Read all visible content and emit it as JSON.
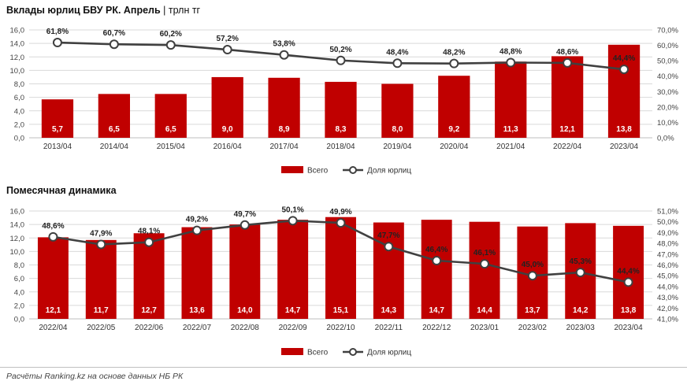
{
  "header": {
    "title": "Вклады юрлиц БВУ РК. Апрель",
    "separator": "|",
    "unit": "трлн тг"
  },
  "footnote": "Расчёты Ranking.kz на основе данных НБ РК",
  "colors": {
    "bar": "#C00000",
    "line": "#404040",
    "grid": "#d9d9d9"
  },
  "chart_data": [
    {
      "type": "bar",
      "title": "",
      "categories": [
        "2013/04",
        "2014/04",
        "2015/04",
        "2016/04",
        "2017/04",
        "2018/04",
        "2019/04",
        "2020/04",
        "2021/04",
        "2022/04",
        "2023/04"
      ],
      "series": [
        {
          "name": "Всего",
          "type": "bar",
          "axis": "left",
          "values": [
            5.7,
            6.5,
            6.5,
            9.0,
            8.9,
            8.3,
            8.0,
            9.2,
            11.3,
            12.1,
            13.8
          ],
          "labels": [
            "5,7",
            "6,5",
            "6,5",
            "9,0",
            "8,9",
            "8,3",
            "8,0",
            "9,2",
            "11,3",
            "12,1",
            "13,8"
          ]
        },
        {
          "name": "Доля юрлиц",
          "type": "line",
          "axis": "right",
          "values": [
            61.8,
            60.7,
            60.2,
            57.2,
            53.8,
            50.2,
            48.4,
            48.2,
            48.8,
            48.6,
            44.4
          ],
          "labels": [
            "61,8%",
            "60,7%",
            "60,2%",
            "57,2%",
            "53,8%",
            "50,2%",
            "48,4%",
            "48,2%",
            "48,8%",
            "48,6%",
            "44,4%"
          ]
        }
      ],
      "ylim": [
        0,
        16
      ],
      "y2lim": [
        0,
        70
      ],
      "yticks": [
        "0,0",
        "2,0",
        "4,0",
        "6,0",
        "8,0",
        "10,0",
        "12,0",
        "14,0",
        "16,0"
      ],
      "y2ticks": [
        "0,0%",
        "10,0%",
        "20,0%",
        "30,0%",
        "40,0%",
        "50,0%",
        "60,0%",
        "70,0%"
      ],
      "grid": true,
      "legend": "bottom-center"
    },
    {
      "type": "bar",
      "title": "Помесячная динамика",
      "categories": [
        "2022/04",
        "2022/05",
        "2022/06",
        "2022/07",
        "2022/08",
        "2022/09",
        "2022/10",
        "2022/11",
        "2022/12",
        "2023/01",
        "2023/02",
        "2023/03",
        "2023/04"
      ],
      "series": [
        {
          "name": "Всего",
          "type": "bar",
          "axis": "left",
          "values": [
            12.1,
            11.7,
            12.7,
            13.6,
            14.0,
            14.7,
            15.1,
            14.3,
            14.7,
            14.4,
            13.7,
            14.2,
            13.8
          ],
          "labels": [
            "12,1",
            "11,7",
            "12,7",
            "13,6",
            "14,0",
            "14,7",
            "15,1",
            "14,3",
            "14,7",
            "14,4",
            "13,7",
            "14,2",
            "13,8"
          ]
        },
        {
          "name": "Доля юрлиц",
          "type": "line",
          "axis": "right",
          "values": [
            48.6,
            47.9,
            48.1,
            49.2,
            49.7,
            50.1,
            49.9,
            47.7,
            46.4,
            46.1,
            45.0,
            45.3,
            44.4
          ],
          "labels": [
            "48,6%",
            "47,9%",
            "48,1%",
            "49,2%",
            "49,7%",
            "50,1%",
            "49,9%",
            "47,7%",
            "46,4%",
            "46,1%",
            "45,0%",
            "45,3%",
            "44,4%"
          ]
        }
      ],
      "ylim": [
        0,
        16
      ],
      "y2lim": [
        41,
        51
      ],
      "yticks": [
        "0,0",
        "2,0",
        "4,0",
        "6,0",
        "8,0",
        "10,0",
        "12,0",
        "14,0",
        "16,0"
      ],
      "y2ticks": [
        "41,0%",
        "42,0%",
        "43,0%",
        "44,0%",
        "45,0%",
        "46,0%",
        "47,0%",
        "48,0%",
        "49,0%",
        "50,0%",
        "51,0%"
      ],
      "grid": true,
      "legend": "bottom-center"
    }
  ]
}
